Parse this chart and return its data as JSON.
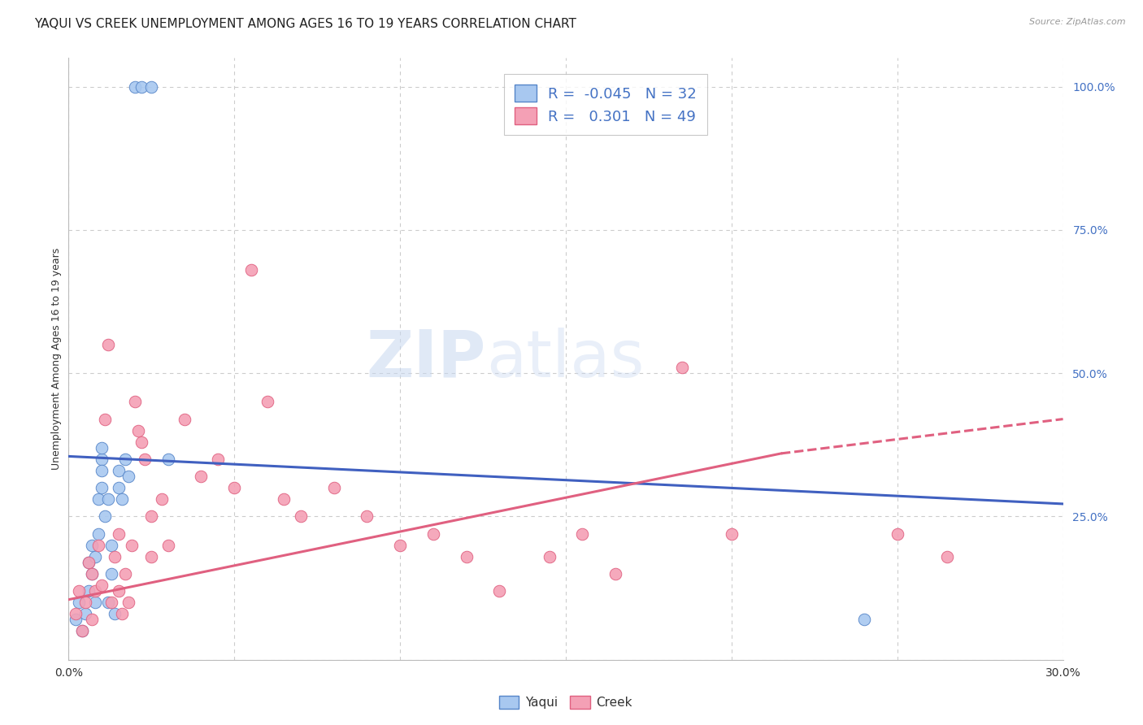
{
  "title": "YAQUI VS CREEK UNEMPLOYMENT AMONG AGES 16 TO 19 YEARS CORRELATION CHART",
  "source": "Source: ZipAtlas.com",
  "ylabel": "Unemployment Among Ages 16 to 19 years",
  "xlim": [
    0.0,
    0.3
  ],
  "ylim": [
    0.0,
    1.05
  ],
  "yaqui_R": -0.045,
  "yaqui_N": 32,
  "creek_R": 0.301,
  "creek_N": 49,
  "yaqui_color": "#A8C8F0",
  "creek_color": "#F4A0B5",
  "yaqui_edge_color": "#5585C8",
  "creek_edge_color": "#E06080",
  "yaqui_line_color": "#4060C0",
  "creek_line_color": "#E06080",
  "background_color": "#FFFFFF",
  "grid_color": "#CCCCCC",
  "legend_text_color": "#4472C4",
  "watermark_zip": "ZIP",
  "watermark_atlas": "atlas",
  "yaqui_x": [
    0.002,
    0.003,
    0.004,
    0.005,
    0.006,
    0.006,
    0.007,
    0.007,
    0.008,
    0.008,
    0.009,
    0.009,
    0.01,
    0.01,
    0.011,
    0.012,
    0.013,
    0.013,
    0.014,
    0.015,
    0.015,
    0.016,
    0.017,
    0.018,
    0.02,
    0.022,
    0.025,
    0.03,
    0.01,
    0.01,
    0.012,
    0.24
  ],
  "yaqui_y": [
    0.07,
    0.1,
    0.05,
    0.08,
    0.12,
    0.17,
    0.2,
    0.15,
    0.1,
    0.18,
    0.22,
    0.28,
    0.35,
    0.3,
    0.25,
    0.1,
    0.15,
    0.2,
    0.08,
    0.33,
    0.3,
    0.28,
    0.35,
    0.32,
    1.0,
    1.0,
    1.0,
    0.35,
    0.33,
    0.37,
    0.28,
    0.07
  ],
  "creek_x": [
    0.002,
    0.003,
    0.004,
    0.005,
    0.006,
    0.007,
    0.007,
    0.008,
    0.009,
    0.01,
    0.011,
    0.012,
    0.013,
    0.014,
    0.015,
    0.015,
    0.016,
    0.017,
    0.018,
    0.019,
    0.02,
    0.021,
    0.022,
    0.023,
    0.025,
    0.025,
    0.028,
    0.03,
    0.035,
    0.04,
    0.045,
    0.05,
    0.055,
    0.06,
    0.065,
    0.07,
    0.08,
    0.09,
    0.1,
    0.11,
    0.12,
    0.13,
    0.145,
    0.155,
    0.165,
    0.185,
    0.2,
    0.25,
    0.265
  ],
  "creek_y": [
    0.08,
    0.12,
    0.05,
    0.1,
    0.17,
    0.07,
    0.15,
    0.12,
    0.2,
    0.13,
    0.42,
    0.55,
    0.1,
    0.18,
    0.22,
    0.12,
    0.08,
    0.15,
    0.1,
    0.2,
    0.45,
    0.4,
    0.38,
    0.35,
    0.25,
    0.18,
    0.28,
    0.2,
    0.42,
    0.32,
    0.35,
    0.3,
    0.68,
    0.45,
    0.28,
    0.25,
    0.3,
    0.25,
    0.2,
    0.22,
    0.18,
    0.12,
    0.18,
    0.22,
    0.15,
    0.51,
    0.22,
    0.22,
    0.18
  ],
  "yaqui_line_x0": 0.0,
  "yaqui_line_x1": 0.3,
  "yaqui_line_y0": 0.355,
  "yaqui_line_y1": 0.272,
  "creek_line_x0": 0.0,
  "creek_line_x1": 0.215,
  "creek_line_x1_dash": 0.3,
  "creek_line_y0": 0.105,
  "creek_line_y1": 0.36,
  "creek_line_y1_dash": 0.42,
  "title_fontsize": 11,
  "axis_fontsize": 9,
  "legend_fontsize": 13,
  "tick_label_fontsize": 10
}
